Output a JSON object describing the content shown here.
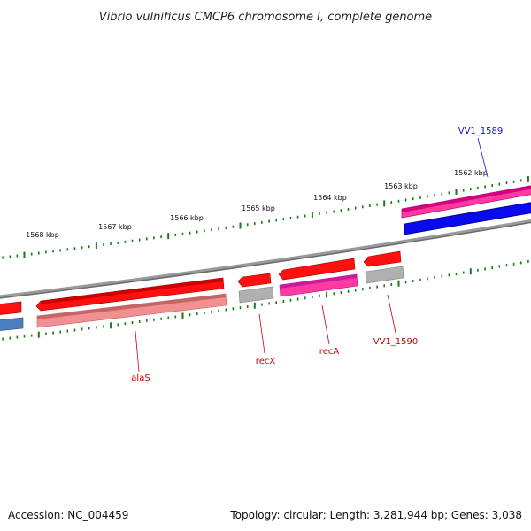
{
  "header": {
    "title": "Vibrio vulnificus CMCP6 chromosome I, complete genome"
  },
  "footer": {
    "accession": "Accession: NC_004459",
    "topology": "Topology: circular; Length: 3,281,944 bp; Genes: 3,038"
  },
  "colors": {
    "background": "#ffffff",
    "backbone": "#888888",
    "tick": "#1a7a1a",
    "gene_red": "#ff1010",
    "gene_light_red": "#f09090",
    "gene_magenta": "#ff3aa0",
    "gene_purple": "#cc1aa0",
    "gene_blue": "#0a0aee",
    "gene_steelblue": "#4a80c0",
    "gene_gray": "#b0b0b0",
    "label_red": "#cc0000",
    "label_blue": "#1010cc"
  },
  "scale": {
    "labels": [
      "1562 kbp",
      "1563 kbp",
      "1564 kbp",
      "1565 kbp",
      "1566 kbp",
      "1567 kbp",
      "1568 kbp"
    ]
  },
  "gene_labels": [
    {
      "text": "VV1_1589",
      "color": "label_blue"
    },
    {
      "text": "alaS",
      "color": "label_red"
    },
    {
      "text": "recX",
      "color": "label_red"
    },
    {
      "text": "recA",
      "color": "label_red"
    },
    {
      "text": "VV1_1590",
      "color": "label_red"
    }
  ]
}
